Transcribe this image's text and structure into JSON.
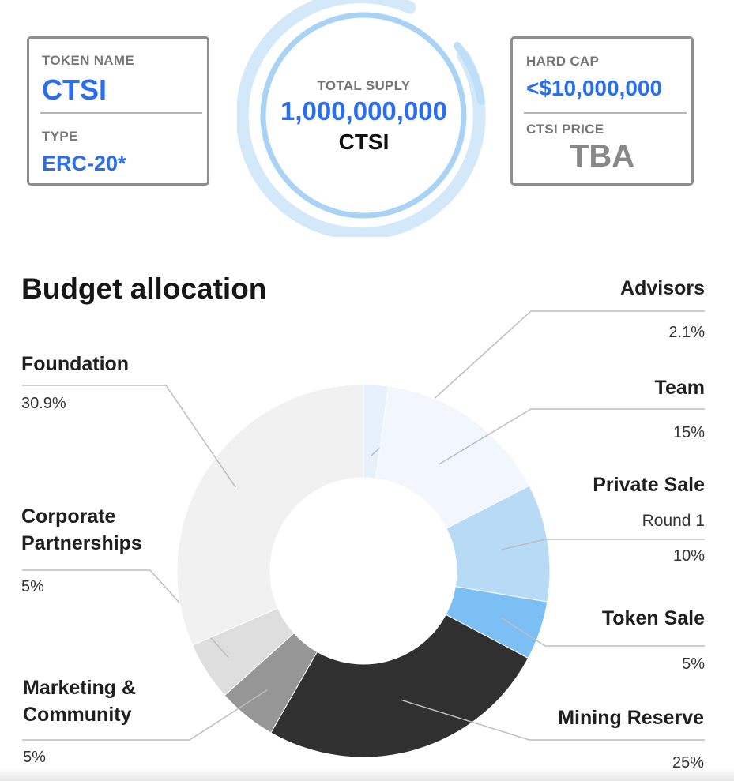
{
  "token": {
    "name_label": "TOKEN NAME",
    "name": "CTSI",
    "type_label": "TYPE",
    "type": "ERC-20*"
  },
  "supply": {
    "label": "TOTAL SUPLY",
    "value": "1,000,000,000",
    "unit": "CTSI"
  },
  "cap": {
    "hard_cap_label": "HARD CAP",
    "hard_cap": "<$10,000,000",
    "price_label": "CTSI PRICE",
    "price": "TBA"
  },
  "colors": {
    "accent_blue": "#2a6ef0",
    "ring": "#a9d3f5"
  },
  "chart_data": {
    "type": "pie",
    "title": "Budget allocation",
    "donut": true,
    "slices": [
      {
        "name": "Advisors",
        "value": 2.1,
        "label": "2.1%",
        "color": "#e7f1fc"
      },
      {
        "name": "Team",
        "value": 15,
        "label": "15%",
        "color": "#f1f7fd"
      },
      {
        "name": "Private Sale",
        "sub": "Round 1",
        "value": 10,
        "label": "10%",
        "color": "#b7daf5"
      },
      {
        "name": "Token Sale",
        "value": 5,
        "label": "5%",
        "color": "#7bbff5"
      },
      {
        "name": "Mining Reserve",
        "value": 25,
        "label": "25%",
        "color": "#303030"
      },
      {
        "name": "Marketing & Community",
        "value": 5,
        "label": "5%",
        "color": "#969696"
      },
      {
        "name": "Corporate Partnerships",
        "value": 5,
        "label": "5%",
        "color": "#dedede"
      },
      {
        "name": "Foundation",
        "value": 30.9,
        "label": "30.9%",
        "color": "#f1f1f1"
      }
    ]
  }
}
